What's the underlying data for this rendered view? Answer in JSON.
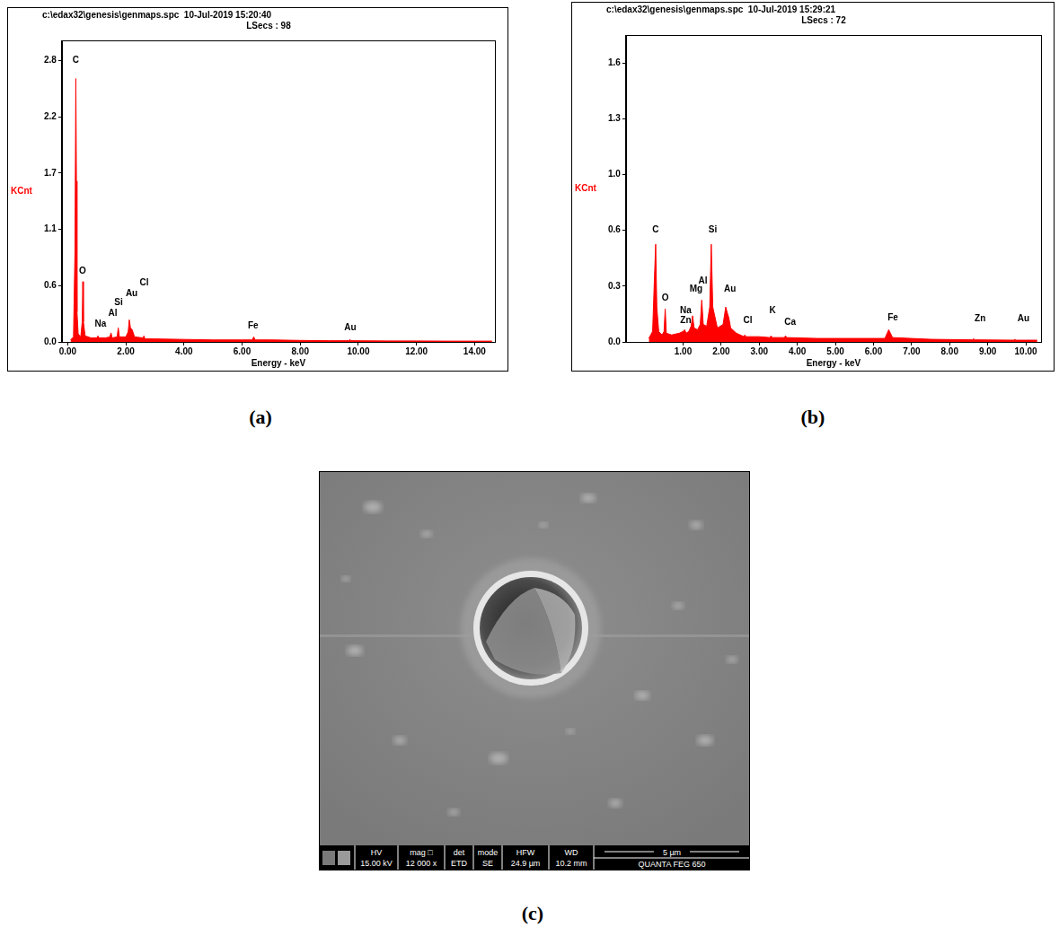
{
  "chart_data": [
    {
      "type": "line",
      "panel_label": "(a)",
      "title": "c:\\edax32\\genesis\\genmaps.spc  10-Jul-2019 15:20:40",
      "subtitle": "LSecs : 98",
      "x_label": "Energy - keV",
      "y_label": "KCnt",
      "color": "#ff0000",
      "grid": false,
      "x": [
        0.1,
        0.2,
        0.25,
        0.28,
        0.3,
        0.32,
        0.36,
        0.45,
        0.5,
        0.52,
        0.54,
        0.6,
        0.8,
        1.0,
        1.04,
        1.08,
        1.3,
        1.45,
        1.49,
        1.53,
        1.7,
        1.74,
        1.78,
        2.0,
        2.08,
        2.12,
        2.16,
        2.22,
        2.3,
        2.6,
        2.62,
        2.66,
        3.0,
        4.0,
        5.0,
        6.0,
        6.35,
        6.4,
        6.45,
        7.0,
        8.0,
        9.0,
        9.68,
        9.71,
        9.74,
        11.0,
        12.0,
        13.0,
        14.0,
        14.6
      ],
      "values": [
        0.02,
        0.05,
        0.9,
        2.62,
        1.6,
        0.3,
        0.08,
        0.05,
        0.2,
        0.6,
        0.2,
        0.06,
        0.04,
        0.04,
        0.06,
        0.04,
        0.04,
        0.05,
        0.09,
        0.04,
        0.05,
        0.14,
        0.05,
        0.05,
        0.1,
        0.22,
        0.14,
        0.12,
        0.05,
        0.04,
        0.06,
        0.03,
        0.03,
        0.025,
        0.02,
        0.02,
        0.02,
        0.05,
        0.02,
        0.02,
        0.015,
        0.012,
        0.012,
        0.025,
        0.012,
        0.01,
        0.01,
        0.008,
        0.008,
        0.008
      ],
      "xlim": [
        -0.2,
        14.7
      ],
      "xticks": [
        {
          "value": 0,
          "label": "0.00"
        },
        {
          "value": 2,
          "label": "2.00"
        },
        {
          "value": 4,
          "label": "4.00"
        },
        {
          "value": 6,
          "label": "6.00"
        },
        {
          "value": 8,
          "label": "8.00"
        },
        {
          "value": 10,
          "label": "10.00"
        },
        {
          "value": 12,
          "label": "12.00"
        },
        {
          "value": 14,
          "label": "14.00"
        }
      ],
      "ylim": [
        0,
        3.0
      ],
      "yticks": [
        {
          "value": 0,
          "label": "0.0"
        },
        {
          "value": 0.56,
          "label": "0.6"
        },
        {
          "value": 1.12,
          "label": "1.1"
        },
        {
          "value": 1.68,
          "label": "1.7"
        },
        {
          "value": 2.24,
          "label": "2.2"
        },
        {
          "value": 2.8,
          "label": "2.8"
        }
      ],
      "annotations": [
        {
          "text": "C",
          "x": 0.28,
          "y": 2.8
        },
        {
          "text": "O",
          "x": 0.51,
          "y": 0.7
        },
        {
          "text": "Na",
          "x": 1.13,
          "y": 0.18
        },
        {
          "text": "Al",
          "x": 1.55,
          "y": 0.28
        },
        {
          "text": "Si",
          "x": 1.75,
          "y": 0.39
        },
        {
          "text": "Au",
          "x": 2.2,
          "y": 0.48
        },
        {
          "text": "Cl",
          "x": 2.63,
          "y": 0.59
        },
        {
          "text": "Fe",
          "x": 6.38,
          "y": 0.16
        },
        {
          "text": "Au",
          "x": 9.72,
          "y": 0.14
        }
      ]
    },
    {
      "type": "line",
      "panel_label": "(b)",
      "title": "c:\\edax32\\genesis\\genmaps.spc  10-Jul-2019 15:29:21",
      "subtitle": "LSecs : 72",
      "x_label": "Energy - keV",
      "y_label": "KCnt",
      "color": "#ff0000",
      "grid": false,
      "x": [
        0.1,
        0.2,
        0.25,
        0.28,
        0.31,
        0.36,
        0.45,
        0.5,
        0.53,
        0.56,
        0.7,
        0.9,
        1.0,
        1.04,
        1.08,
        1.15,
        1.21,
        1.25,
        1.29,
        1.38,
        1.45,
        1.49,
        1.53,
        1.62,
        1.7,
        1.74,
        1.78,
        1.9,
        2.05,
        2.12,
        2.17,
        2.2,
        2.25,
        2.4,
        2.6,
        2.62,
        2.65,
        3.0,
        3.28,
        3.31,
        3.34,
        3.66,
        3.69,
        3.72,
        4.5,
        5.5,
        6.3,
        6.4,
        6.5,
        7.5,
        8.6,
        8.63,
        8.66,
        9.68,
        9.71,
        9.74,
        10.3
      ],
      "values": [
        0.02,
        0.06,
        0.38,
        0.56,
        0.2,
        0.06,
        0.04,
        0.06,
        0.19,
        0.05,
        0.04,
        0.05,
        0.06,
        0.07,
        0.05,
        0.06,
        0.09,
        0.15,
        0.08,
        0.07,
        0.1,
        0.24,
        0.1,
        0.09,
        0.2,
        0.56,
        0.2,
        0.08,
        0.1,
        0.2,
        0.16,
        0.14,
        0.08,
        0.05,
        0.03,
        0.04,
        0.03,
        0.03,
        0.025,
        0.035,
        0.025,
        0.025,
        0.035,
        0.025,
        0.02,
        0.02,
        0.02,
        0.07,
        0.025,
        0.015,
        0.012,
        0.018,
        0.012,
        0.01,
        0.014,
        0.01,
        0.01
      ],
      "xlim": [
        -0.5,
        10.4
      ],
      "xticks": [
        {
          "value": 1,
          "label": "1.00"
        },
        {
          "value": 2,
          "label": "2.00"
        },
        {
          "value": 3,
          "label": "3.00"
        },
        {
          "value": 4,
          "label": "4.00"
        },
        {
          "value": 5,
          "label": "5.00"
        },
        {
          "value": 6,
          "label": "6.00"
        },
        {
          "value": 7,
          "label": "7.00"
        },
        {
          "value": 8,
          "label": "8.00"
        },
        {
          "value": 9,
          "label": "9.00"
        },
        {
          "value": 10,
          "label": "10.00"
        }
      ],
      "ylim": [
        0,
        1.76
      ],
      "yticks": [
        {
          "value": 0,
          "label": "0.0"
        },
        {
          "value": 0.32,
          "label": "0.3"
        },
        {
          "value": 0.64,
          "label": "0.6"
        },
        {
          "value": 0.96,
          "label": "1.0"
        },
        {
          "value": 1.28,
          "label": "1.3"
        },
        {
          "value": 1.6,
          "label": "1.6"
        }
      ],
      "annotations": [
        {
          "text": "C",
          "x": 0.28,
          "y": 0.64
        },
        {
          "text": "O",
          "x": 0.53,
          "y": 0.25
        },
        {
          "text": "Na",
          "x": 1.07,
          "y": 0.18
        },
        {
          "text": "Zn",
          "x": 1.07,
          "y": 0.12
        },
        {
          "text": "Mg",
          "x": 1.34,
          "y": 0.3
        },
        {
          "text": "Al",
          "x": 1.52,
          "y": 0.35
        },
        {
          "text": "Si",
          "x": 1.78,
          "y": 0.64
        },
        {
          "text": "Au",
          "x": 2.23,
          "y": 0.3
        },
        {
          "text": "Cl",
          "x": 2.7,
          "y": 0.12
        },
        {
          "text": "K",
          "x": 3.35,
          "y": 0.18
        },
        {
          "text": "Ca",
          "x": 3.81,
          "y": 0.11
        },
        {
          "text": "Fe",
          "x": 6.51,
          "y": 0.14
        },
        {
          "text": "Zn",
          "x": 8.8,
          "y": 0.13
        },
        {
          "text": "Au",
          "x": 9.94,
          "y": 0.13
        }
      ]
    }
  ],
  "image": {
    "panel_label": "(c)",
    "info_bar": {
      "heads": [
        "HV",
        "mag □",
        "det",
        "mode",
        "HFW",
        "WD"
      ],
      "values": [
        "15.00 kV",
        "12 000 x",
        "ETD",
        "SE",
        "24.9 µm",
        "10.2 mm"
      ]
    },
    "scale_bar": "5 µm",
    "instrument": "QUANTA FEG 650"
  }
}
